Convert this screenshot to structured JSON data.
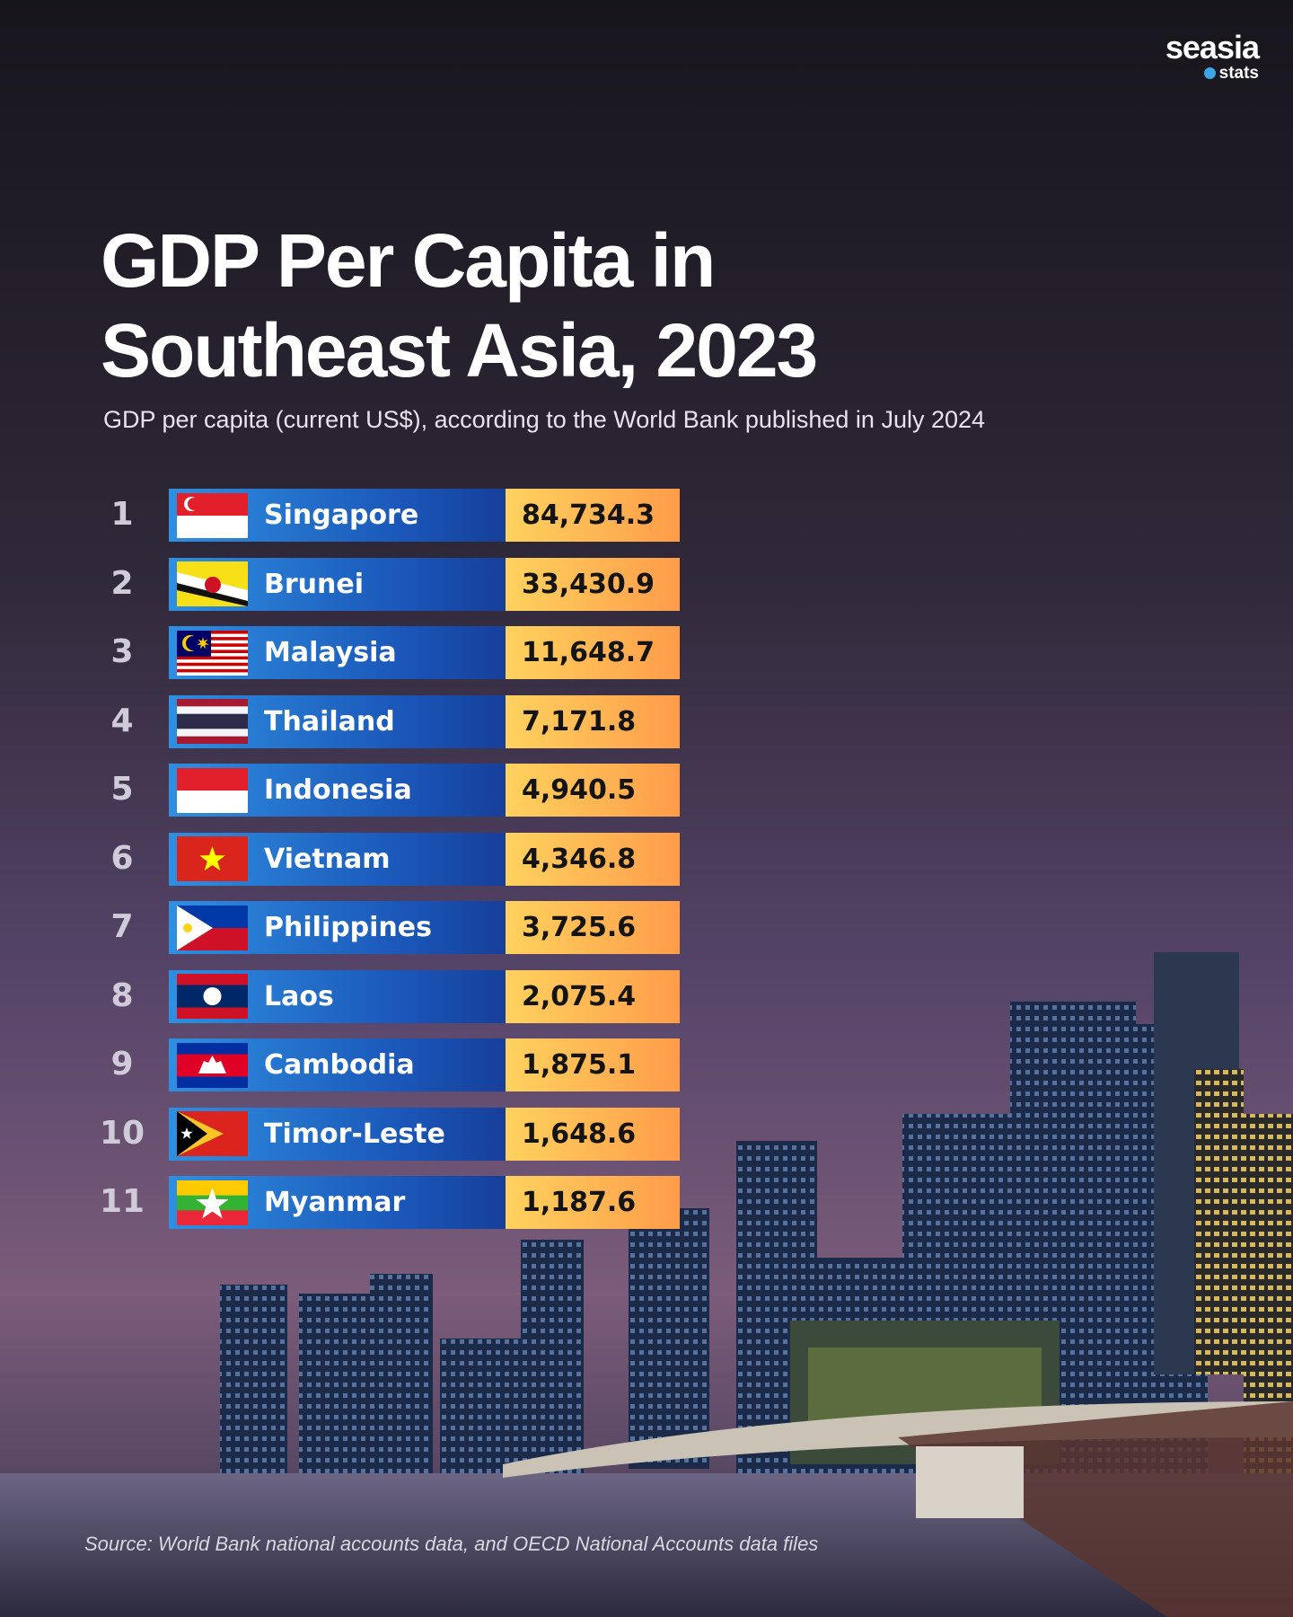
{
  "logo": {
    "name": "seasia",
    "sub": "stats"
  },
  "header": {
    "title": "GDP Per Capita in Southeast Asia, 2023",
    "subtitle": "GDP per capita (current US$), according to the World Bank published in July 2024"
  },
  "table": {
    "rows": [
      {
        "rank": "1",
        "country": "Singapore",
        "value": "84,734.3"
      },
      {
        "rank": "2",
        "country": "Brunei",
        "value": "33,430.9"
      },
      {
        "rank": "3",
        "country": "Malaysia",
        "value": "11,648.7"
      },
      {
        "rank": "4",
        "country": "Thailand",
        "value": "7,171.8"
      },
      {
        "rank": "5",
        "country": "Indonesia",
        "value": "4,940.5"
      },
      {
        "rank": "6",
        "country": "Vietnam",
        "value": "4,346.8"
      },
      {
        "rank": "7",
        "country": "Philippines",
        "value": "3,725.6"
      },
      {
        "rank": "8",
        "country": "Laos",
        "value": "2,075.4"
      },
      {
        "rank": "9",
        "country": "Cambodia",
        "value": "1,875.1"
      },
      {
        "rank": "10",
        "country": "Timor-Leste",
        "value": "1,648.6"
      },
      {
        "rank": "11",
        "country": "Myanmar",
        "value": "1,187.6"
      }
    ]
  },
  "footer": {
    "source": "Source: World Bank national accounts data, and OECD National Accounts data files"
  }
}
